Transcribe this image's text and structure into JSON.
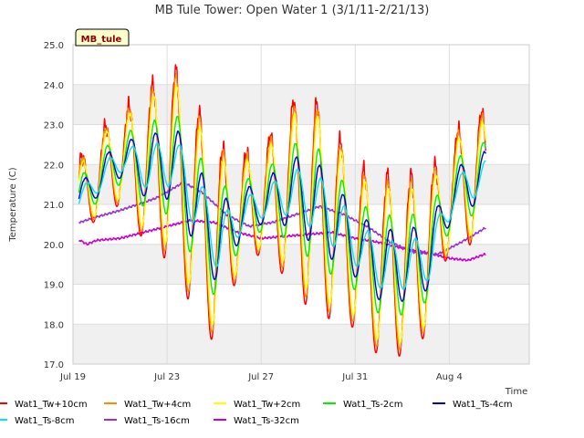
{
  "chart_data": {
    "type": "line",
    "title": "MB Tule Tower: Open Water 1 (3/1/11-2/21/13)",
    "xlabel": "Time",
    "ylabel": "Temperature (C)",
    "ylim": [
      17.0,
      25.0
    ],
    "yticks": [
      "17.0",
      "18.0",
      "19.0",
      "20.0",
      "21.0",
      "22.0",
      "23.0",
      "24.0",
      "25.0"
    ],
    "xlim_days": [
      0,
      19.4
    ],
    "xticks": [
      {
        "label": "Jul 19",
        "day": 0
      },
      {
        "label": "Jul 23",
        "day": 4
      },
      {
        "label": "Jul 27",
        "day": 8
      },
      {
        "label": "Jul 31",
        "day": 12
      },
      {
        "label": "Aug 4",
        "day": 16
      }
    ],
    "tag": "MB_tule",
    "grid": true,
    "banded_background": true,
    "legend_position": "bottom",
    "x_day_range": [
      0.25,
      17.55
    ],
    "daily_cycle": {
      "days": [
        0,
        1,
        2,
        3,
        4,
        5,
        6,
        7,
        8,
        9,
        10,
        11,
        12,
        13,
        14,
        15,
        16,
        17
      ],
      "max": [
        21.9,
        22.7,
        23.4,
        23.6,
        24.7,
        23.8,
        22.5,
        22.3,
        22.3,
        23.4,
        23.9,
        23.0,
        22.0,
        21.7,
        21.8,
        21.6,
        22.6,
        23.3
      ],
      "min": [
        20.2,
        20.6,
        21.0,
        20.1,
        19.6,
        18.5,
        17.5,
        19.2,
        19.8,
        19.2,
        18.4,
        18.1,
        17.9,
        17.2,
        17.2,
        17.7,
        19.9,
        20.0
      ]
    },
    "series": [
      {
        "name": "Wat1_Tw+10cm",
        "color": "#ff0000",
        "amplitude": 1.0,
        "lag": 0.0,
        "noise": 0.25
      },
      {
        "name": "Wat1_Tw+4cm",
        "color": "#ff8c00",
        "amplitude": 0.93,
        "lag": 0.02,
        "noise": 0.12
      },
      {
        "name": "Wat1_Tw+2cm",
        "color": "#ffff00",
        "amplitude": 0.85,
        "lag": 0.04,
        "noise": 0.06
      },
      {
        "name": "Wat1_Ts-2cm",
        "color": "#00ee00",
        "amplitude": 0.55,
        "lag": 0.08,
        "noise": 0.02
      },
      {
        "name": "Wat1_Ts-4cm",
        "color": "#0000cd",
        "amplitude": 0.4,
        "lag": 0.12,
        "noise": 0.02
      },
      {
        "name": "Wat1_Ts-8cm",
        "color": "#00e5ee",
        "amplitude": 0.27,
        "lag": 0.18,
        "noise": 0.02
      },
      {
        "name": "Wat1_Ts-16cm",
        "color": "#9932cc",
        "type": "slow",
        "points": [
          [
            0.3,
            20.55
          ],
          [
            0.8,
            20.65
          ],
          [
            2,
            20.85
          ],
          [
            3.5,
            21.15
          ],
          [
            4.7,
            21.55
          ],
          [
            5.5,
            21.3
          ],
          [
            6.5,
            20.75
          ],
          [
            7.5,
            20.45
          ],
          [
            8.5,
            20.55
          ],
          [
            9.5,
            20.75
          ],
          [
            10.5,
            20.95
          ],
          [
            11.5,
            20.75
          ],
          [
            12.5,
            20.45
          ],
          [
            13.5,
            20.05
          ],
          [
            14.5,
            19.8
          ],
          [
            15.5,
            19.75
          ],
          [
            16.5,
            20.05
          ],
          [
            17.5,
            20.4
          ]
        ]
      },
      {
        "name": "Wat1_Ts-32cm",
        "color": "#cc00cc",
        "type": "slow",
        "points": [
          [
            0.3,
            20.1
          ],
          [
            0.6,
            20.0
          ],
          [
            1,
            20.1
          ],
          [
            2,
            20.15
          ],
          [
            3,
            20.3
          ],
          [
            4,
            20.45
          ],
          [
            5,
            20.6
          ],
          [
            6,
            20.55
          ],
          [
            7,
            20.3
          ],
          [
            8,
            20.15
          ],
          [
            9,
            20.2
          ],
          [
            10,
            20.25
          ],
          [
            11,
            20.3
          ],
          [
            12,
            20.15
          ],
          [
            13,
            20.05
          ],
          [
            14,
            19.9
          ],
          [
            15,
            19.8
          ],
          [
            16,
            19.65
          ],
          [
            16.8,
            19.6
          ],
          [
            17.5,
            19.75
          ]
        ]
      }
    ]
  }
}
